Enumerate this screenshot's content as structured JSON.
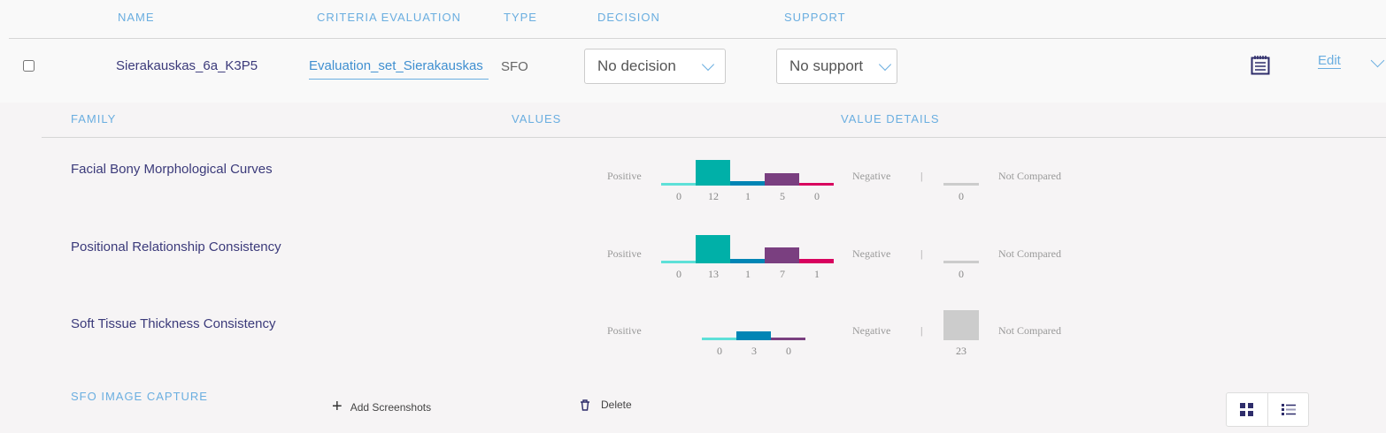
{
  "headers": {
    "name": "NAME",
    "criteria": "CRITERIA EVALUATION",
    "type": "TYPE",
    "decision": "DECISION",
    "support": "SUPPORT"
  },
  "row": {
    "name": "Sierakauskas_6a_K3P5",
    "criteria": "Evaluation_set_Sierakauskas",
    "type": "SFO",
    "decision": "No decision",
    "support": "No support",
    "edit": "Edit"
  },
  "detail_headers": {
    "family": "FAMILY",
    "values": "VALUES",
    "details": "VALUE DETAILS"
  },
  "labels": {
    "positive": "Positive",
    "negative": "Negative",
    "separator": "|",
    "not_compared": "Not Compared"
  },
  "colors": [
    "#5ee0d8",
    "#00b0a8",
    "#0085b5",
    "#7a3f80",
    "#d8005e"
  ],
  "families": [
    {
      "name": "Facial Bony Morphological Curves",
      "values": [
        0,
        12,
        1,
        5,
        0
      ],
      "not_compared": 0
    },
    {
      "name": "Positional Relationship Consistency",
      "values": [
        0,
        13,
        1,
        7,
        1
      ],
      "not_compared": 0
    },
    {
      "name": "Soft Tissue Thickness Consistency",
      "values": [
        0,
        3,
        0
      ],
      "not_compared": 23
    }
  ],
  "capture": {
    "title": "SFO IMAGE CAPTURE",
    "add": "Add Screenshots",
    "delete": "Delete"
  }
}
